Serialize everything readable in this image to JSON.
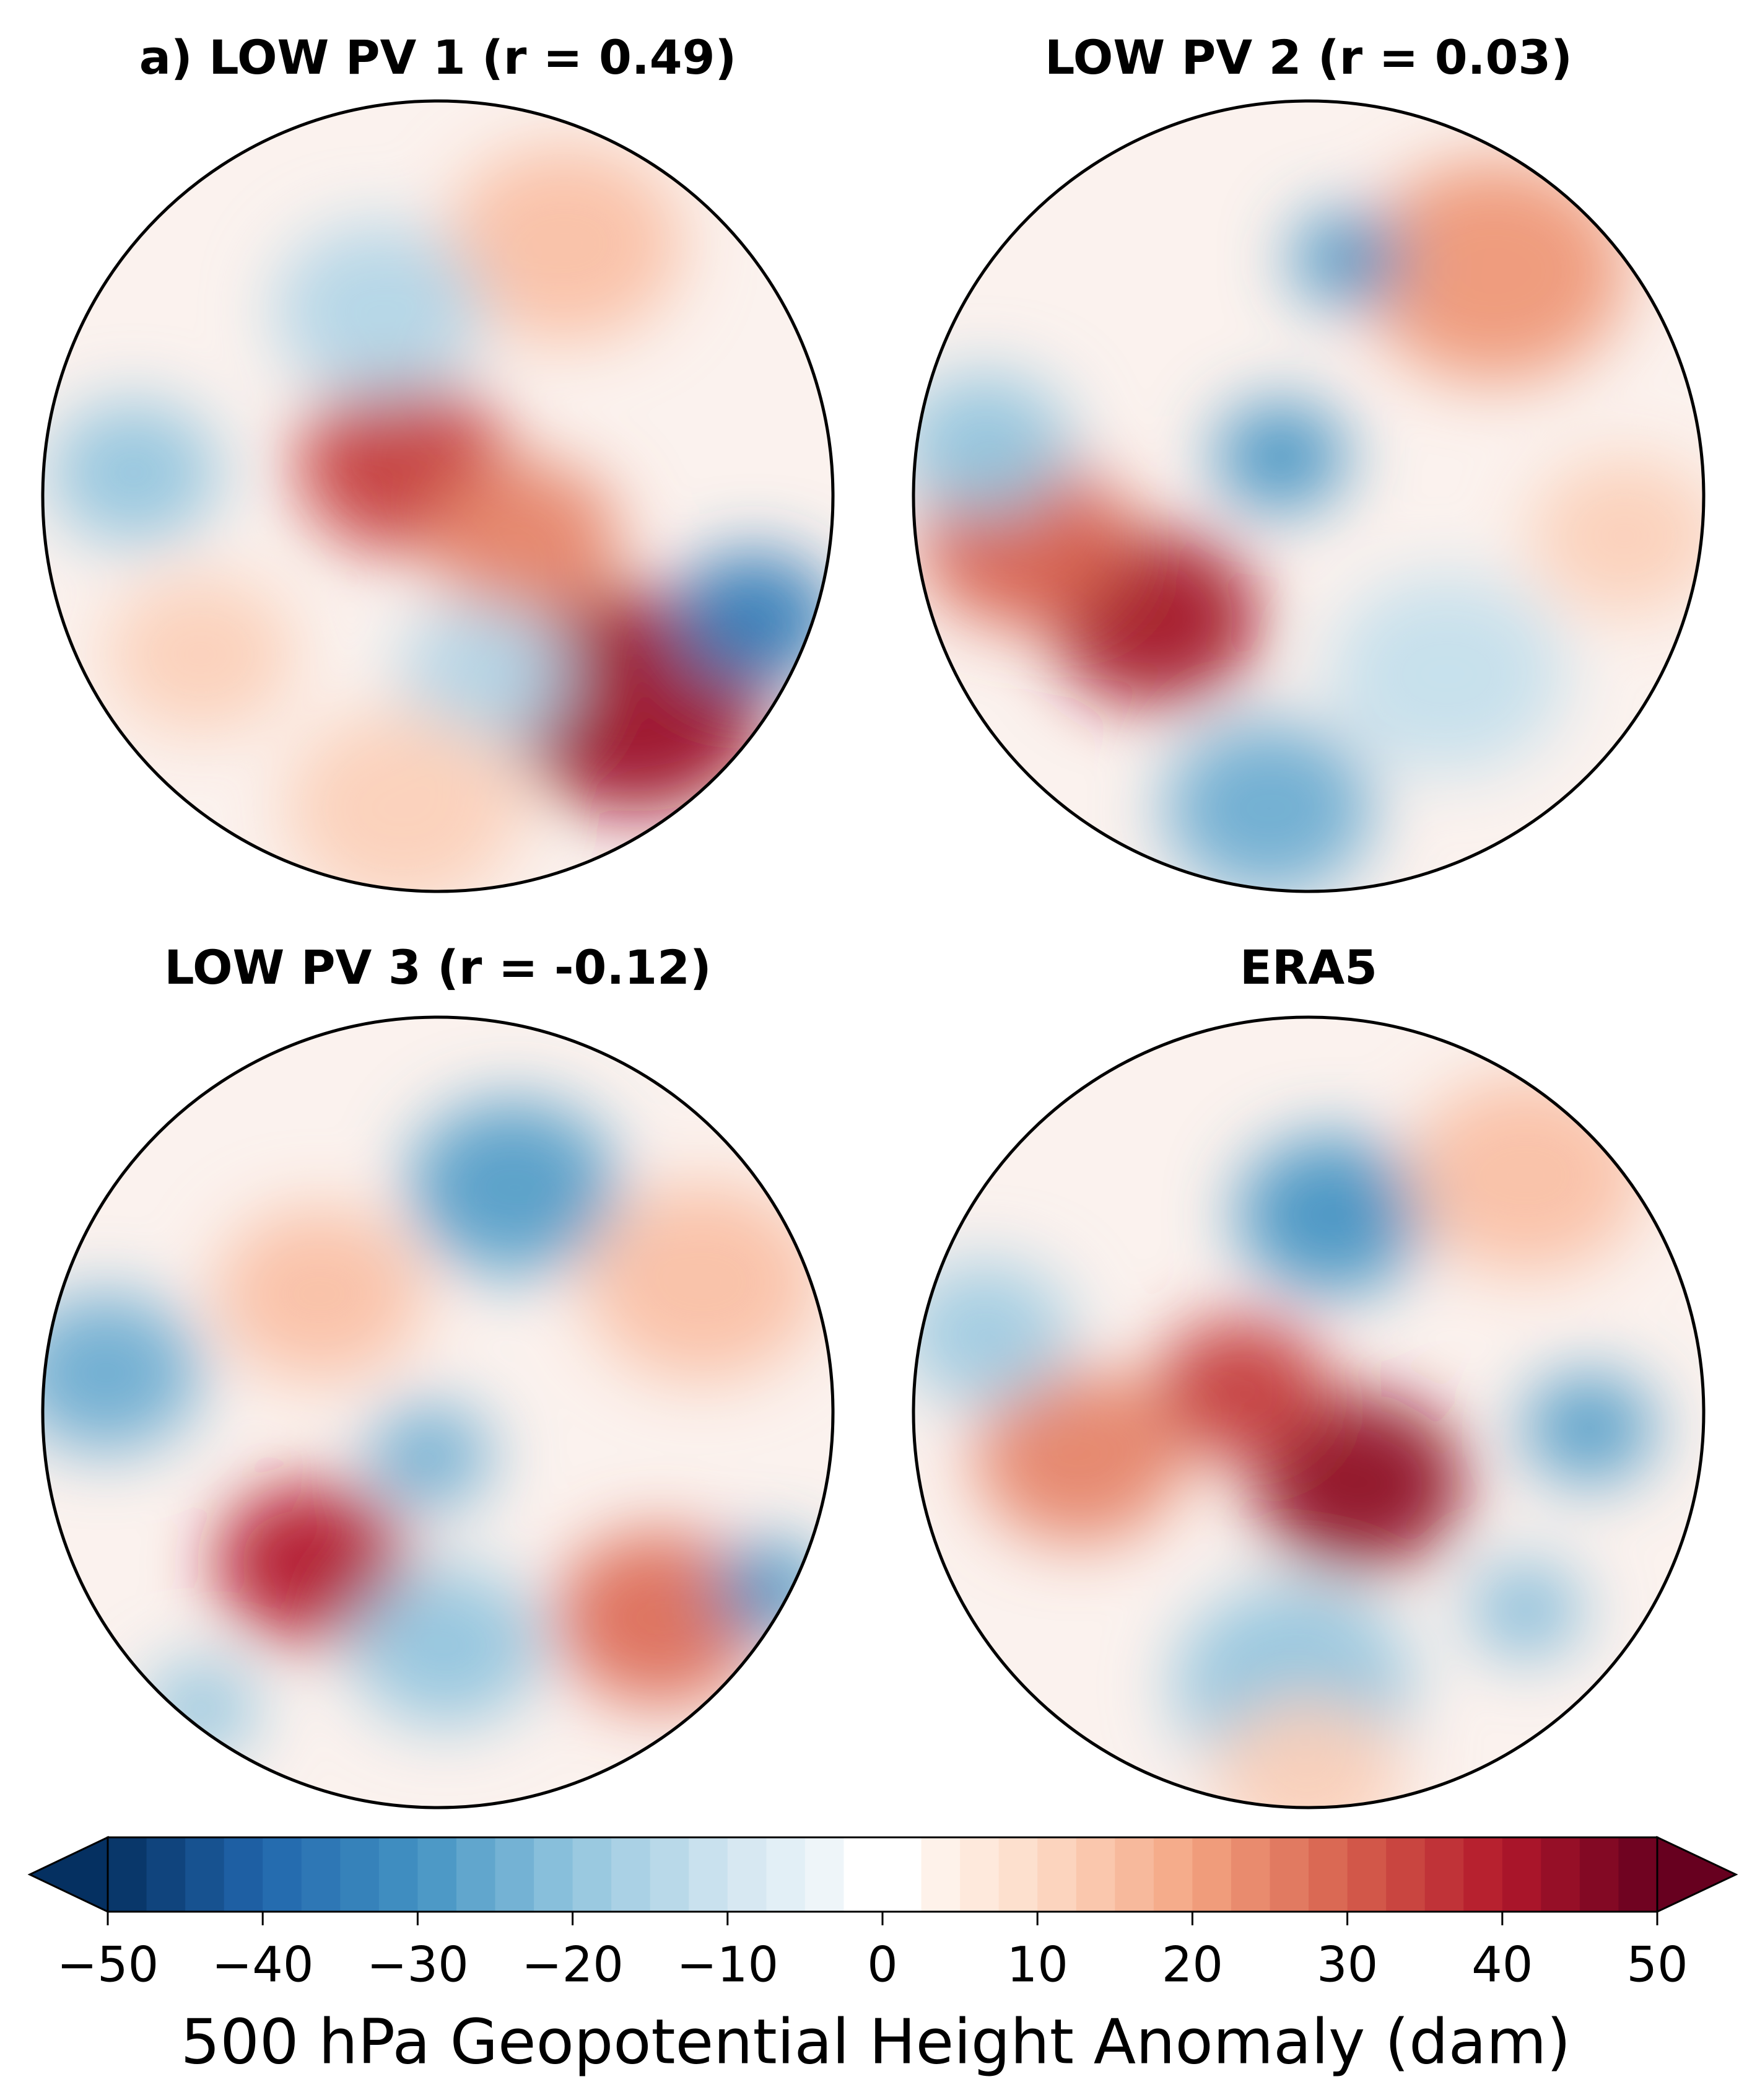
{
  "panels": [
    {
      "title": "a) LOW PV 1 (r = 0.49)"
    },
    {
      "title": "LOW PV 2 (r = 0.03)"
    },
    {
      "title": "LOW PV 3 (r = -0.12)"
    },
    {
      "title": "ERA5"
    }
  ],
  "colorbar": {
    "label": "500 hPa Geopotential Height Anomaly (dam)",
    "lim": [
      -50,
      50
    ],
    "ticks": [
      {
        "value": -50,
        "label": "−50"
      },
      {
        "value": -40,
        "label": "−40"
      },
      {
        "value": -30,
        "label": "−30"
      },
      {
        "value": -20,
        "label": "−20"
      },
      {
        "value": -10,
        "label": "−10"
      },
      0,
      10,
      20,
      30,
      40,
      50
    ],
    "colors": [
      "#053061",
      "#2166ac",
      "#4393c3",
      "#92c5de",
      "#d1e5f0",
      "#ffffff",
      "#fddbc7",
      "#f4a582",
      "#d6604d",
      "#b2182b",
      "#67001f"
    ]
  }
}
